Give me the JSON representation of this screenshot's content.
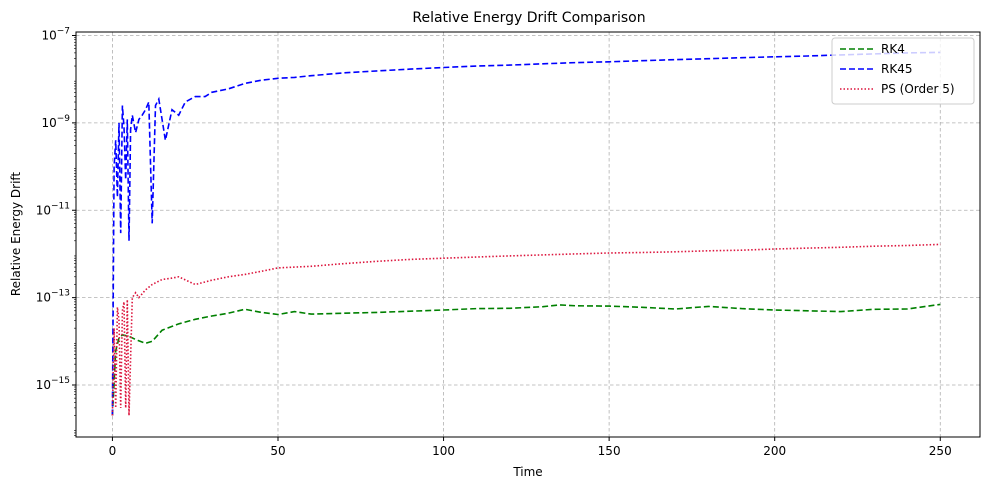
{
  "chart_data": {
    "type": "line",
    "title": "Relative Energy Drift Comparison",
    "xlabel": "Time",
    "ylabel": "Relative Energy Drift",
    "xlim": [
      -11,
      262
    ],
    "ylim_log10": [
      -16.19,
      -6.92
    ],
    "yscale": "log",
    "grid": true,
    "legend_position": "top-right",
    "x_ticks": [
      {
        "value": 0,
        "label": "0"
      },
      {
        "value": 50,
        "label": "50"
      },
      {
        "value": 100,
        "label": "100"
      },
      {
        "value": 150,
        "label": "150"
      },
      {
        "value": 200,
        "label": "200"
      },
      {
        "value": 250,
        "label": "250"
      }
    ],
    "y_ticks": [
      {
        "exp": -15,
        "base": "10",
        "sup": "−15"
      },
      {
        "exp": -13,
        "base": "10",
        "sup": "−13"
      },
      {
        "exp": -11,
        "base": "10",
        "sup": "−11"
      },
      {
        "exp": -9,
        "base": "10",
        "sup": "−9"
      },
      {
        "exp": -7,
        "base": "10",
        "sup": "−7"
      }
    ],
    "series": [
      {
        "name": "RK4",
        "color": "#008000",
        "dash": "dashed",
        "x": [
          0,
          1,
          2,
          3,
          5,
          7,
          10,
          12,
          15,
          18,
          20,
          25,
          30,
          35,
          40,
          45,
          50,
          55,
          60,
          70,
          80,
          90,
          100,
          110,
          120,
          130,
          135,
          140,
          150,
          160,
          170,
          180,
          190,
          200,
          210,
          220,
          230,
          240,
          250
        ],
        "y": [
          2e-16,
          6e-15,
          1.2e-14,
          1.4e-14,
          1.3e-14,
          1.1e-14,
          9e-15,
          1e-14,
          1.8e-14,
          2.2e-14,
          2.5e-14,
          3.2e-14,
          3.8e-14,
          4.4e-14,
          5.4e-14,
          4.6e-14,
          4.1e-14,
          4.8e-14,
          4.2e-14,
          4.4e-14,
          4.6e-14,
          4.9e-14,
          5.2e-14,
          5.6e-14,
          5.7e-14,
          6.2e-14,
          6.8e-14,
          6.5e-14,
          6.4e-14,
          6e-14,
          5.5e-14,
          6.3e-14,
          5.6e-14,
          5.2e-14,
          5e-14,
          4.8e-14,
          5.4e-14,
          5.5e-14,
          7e-14
        ]
      },
      {
        "name": "RK45",
        "color": "#0000ff",
        "dash": "dashed",
        "x": [
          0,
          0.5,
          1,
          1.5,
          2,
          2.5,
          3,
          3.5,
          4,
          4.5,
          5,
          5.5,
          6,
          7,
          8,
          9,
          10,
          11,
          12,
          13,
          14,
          16,
          18,
          20,
          22,
          25,
          28,
          30,
          35,
          40,
          45,
          50,
          55,
          60,
          70,
          80,
          90,
          100,
          110,
          120,
          130,
          140,
          150,
          160,
          170,
          180,
          190,
          200,
          210,
          220,
          230,
          240,
          250
        ],
        "y": [
          2e-16,
          1e-10,
          4e-10,
          2e-11,
          1e-09,
          3e-12,
          2.5e-09,
          8e-10,
          5e-11,
          1.2e-09,
          2e-12,
          7e-10,
          1.5e-09,
          6e-10,
          1.2e-09,
          1.5e-09,
          2e-09,
          3e-09,
          5e-12,
          2.5e-09,
          3.5e-09,
          4e-10,
          2e-09,
          1.5e-09,
          3e-09,
          4e-09,
          4e-09,
          5e-09,
          6e-09,
          8e-09,
          9.5e-09,
          1.05e-08,
          1.1e-08,
          1.2e-08,
          1.4e-08,
          1.55e-08,
          1.7e-08,
          1.85e-08,
          2e-08,
          2.1e-08,
          2.25e-08,
          2.4e-08,
          2.5e-08,
          2.65e-08,
          2.8e-08,
          2.95e-08,
          3.1e-08,
          3.25e-08,
          3.4e-08,
          3.6e-08,
          3.8e-08,
          4e-08,
          4.1e-08
        ]
      },
      {
        "name": "PS (Order 5)",
        "color": "#dc143c",
        "dash": "dotted",
        "x": [
          0,
          0.5,
          1,
          1.5,
          2,
          2.5,
          3,
          3.5,
          4,
          4.5,
          5,
          6,
          7,
          8,
          10,
          12,
          15,
          18,
          20,
          25,
          30,
          35,
          40,
          45,
          50,
          60,
          70,
          80,
          90,
          100,
          110,
          120,
          130,
          140,
          150,
          160,
          170,
          180,
          190,
          200,
          210,
          220,
          230,
          240,
          250
        ],
        "y": [
          2e-16,
          2e-14,
          3e-16,
          6e-14,
          3e-14,
          3e-16,
          5e-14,
          8e-14,
          3e-16,
          9e-14,
          2e-16,
          1e-13,
          1.3e-13,
          1e-13,
          1.5e-13,
          2e-13,
          2.6e-13,
          2.8e-13,
          3e-13,
          2e-13,
          2.5e-13,
          3e-13,
          3.4e-13,
          4e-13,
          4.8e-13,
          5.2e-13,
          6e-13,
          6.8e-13,
          7.5e-13,
          8e-13,
          8.5e-13,
          9e-13,
          9.5e-13,
          1e-12,
          1.05e-12,
          1.08e-12,
          1.12e-12,
          1.18e-12,
          1.22e-12,
          1.3e-12,
          1.36e-12,
          1.42e-12,
          1.5e-12,
          1.56e-12,
          1.65e-12
        ]
      }
    ]
  }
}
